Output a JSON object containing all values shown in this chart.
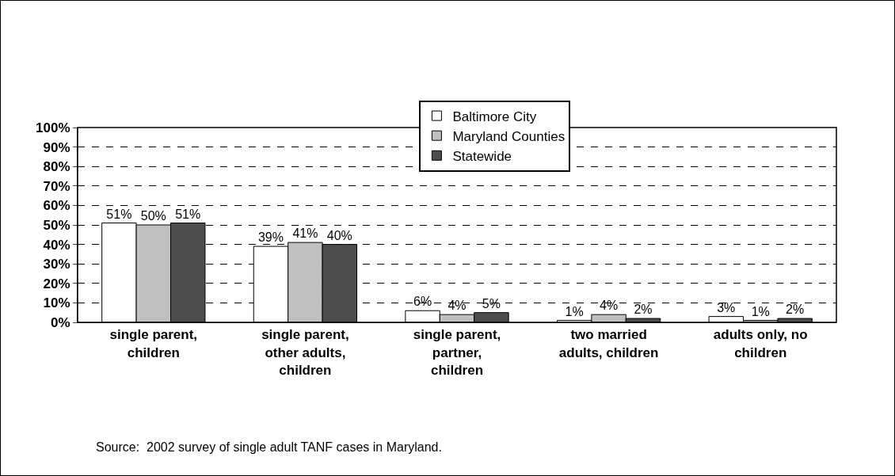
{
  "chart_data": {
    "type": "bar",
    "categories": [
      "single parent, children",
      "single parent, other adults, children",
      "single parent, partner, children",
      "two married adults, children",
      "adults only, no children"
    ],
    "series": [
      {
        "name": "Baltimore City",
        "color": "#ffffff",
        "values": [
          51,
          39,
          6,
          1,
          3
        ],
        "value_labels": [
          "51%",
          "39%",
          "6%",
          "1%",
          "3%"
        ]
      },
      {
        "name": "Maryland Counties",
        "color": "#c0c0c0",
        "values": [
          50,
          41,
          4,
          4,
          1
        ],
        "value_labels": [
          "50%",
          "41%",
          "4%",
          "4%",
          "1%"
        ]
      },
      {
        "name": "Statewide",
        "color": "#4d4d4d",
        "values": [
          51,
          40,
          5,
          2,
          2
        ],
        "value_labels": [
          "51%",
          "40%",
          "5%",
          "2%",
          "2%"
        ]
      }
    ],
    "ylim": [
      0,
      100
    ],
    "yticks": [
      {
        "value": 0,
        "label": "0%"
      },
      {
        "value": 10,
        "label": "10%"
      },
      {
        "value": 20,
        "label": "20%"
      },
      {
        "value": 30,
        "label": "30%"
      },
      {
        "value": 40,
        "label": "40%"
      },
      {
        "value": 50,
        "label": "50%"
      },
      {
        "value": 60,
        "label": "60%"
      },
      {
        "value": 70,
        "label": "70%"
      },
      {
        "value": 80,
        "label": "80%"
      },
      {
        "value": 90,
        "label": "90%"
      },
      {
        "value": 100,
        "label": "100%"
      }
    ],
    "grid": "y",
    "legend": "top",
    "annotations": [
      "Source:  2002 survey of single adult TANF cases in Maryland."
    ]
  }
}
